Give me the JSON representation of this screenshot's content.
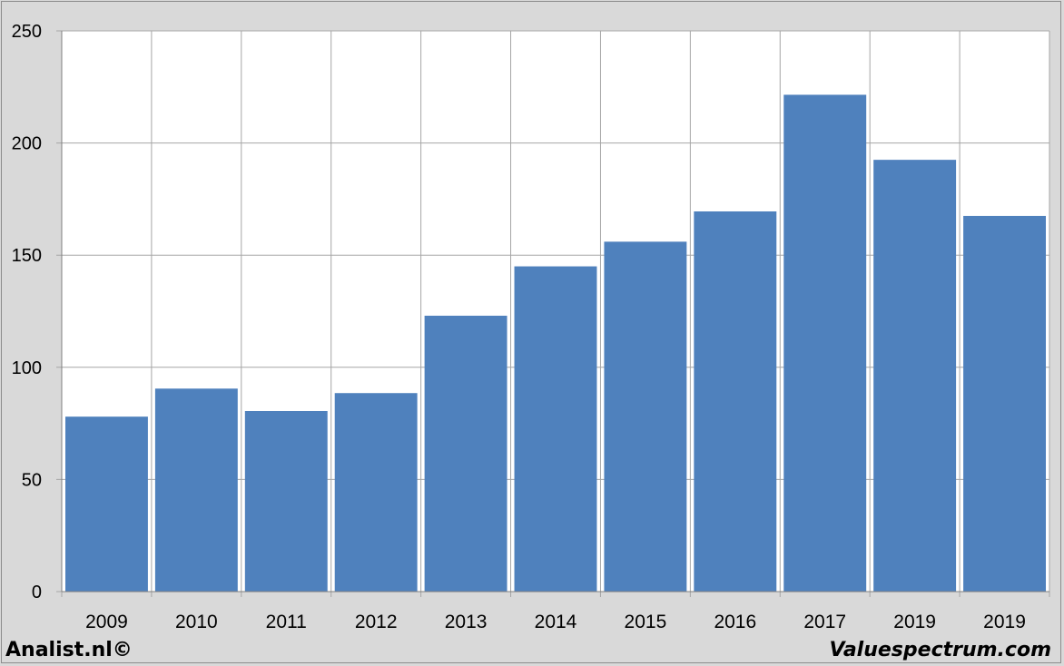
{
  "chart_data": {
    "type": "bar",
    "categories": [
      "2009",
      "2010",
      "2011",
      "2012",
      "2013",
      "2014",
      "2015",
      "2016",
      "2017",
      "2019",
      "2019"
    ],
    "values": [
      78,
      90.5,
      80.5,
      88.5,
      123,
      145,
      156,
      169.5,
      221.5,
      192.5,
      167.5
    ],
    "title": "",
    "xlabel": "",
    "ylabel": "",
    "ylim": [
      0,
      250
    ],
    "yticks": [
      0,
      50,
      100,
      150,
      200,
      250
    ],
    "grid": true,
    "bar_color": "#4f81bd"
  },
  "footer": {
    "left": "Analist.nl©",
    "right": "Valuespectrum.com"
  }
}
